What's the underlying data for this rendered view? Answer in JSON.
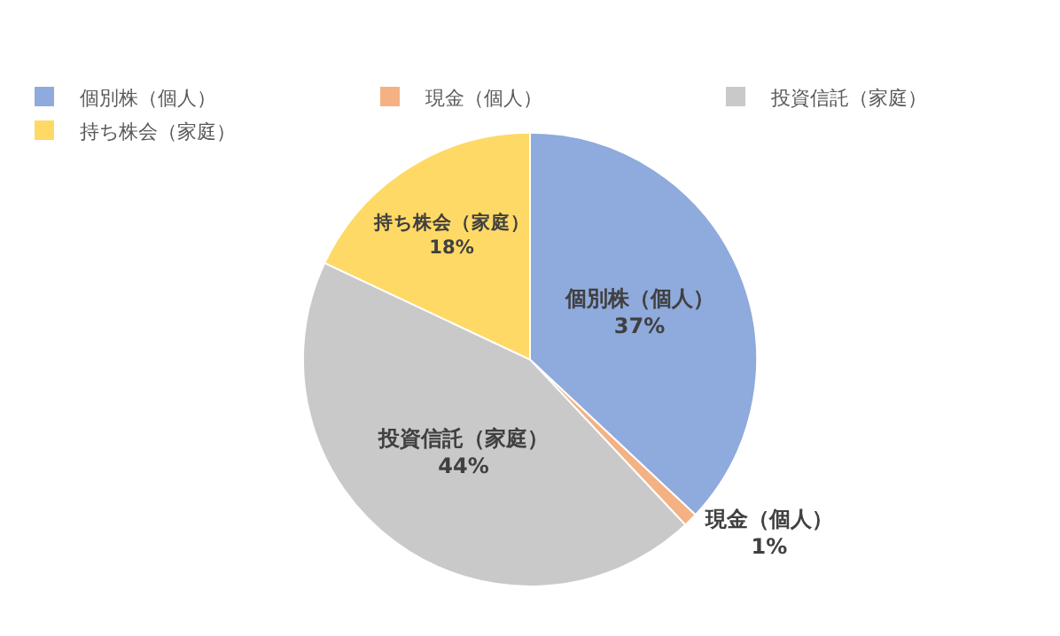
{
  "chart_data": {
    "type": "pie",
    "categories": [
      "個別株（個人）",
      "現金（個人）",
      "投資信託（家庭）",
      "持ち株会（家庭）"
    ],
    "values": [
      37,
      1,
      44,
      18
    ],
    "colors": [
      "#8faadc",
      "#f4b183",
      "#c9c9c9",
      "#ffd966"
    ],
    "value_labels": [
      "37%",
      "1%",
      "44%",
      "18%"
    ],
    "legend": "top left"
  }
}
